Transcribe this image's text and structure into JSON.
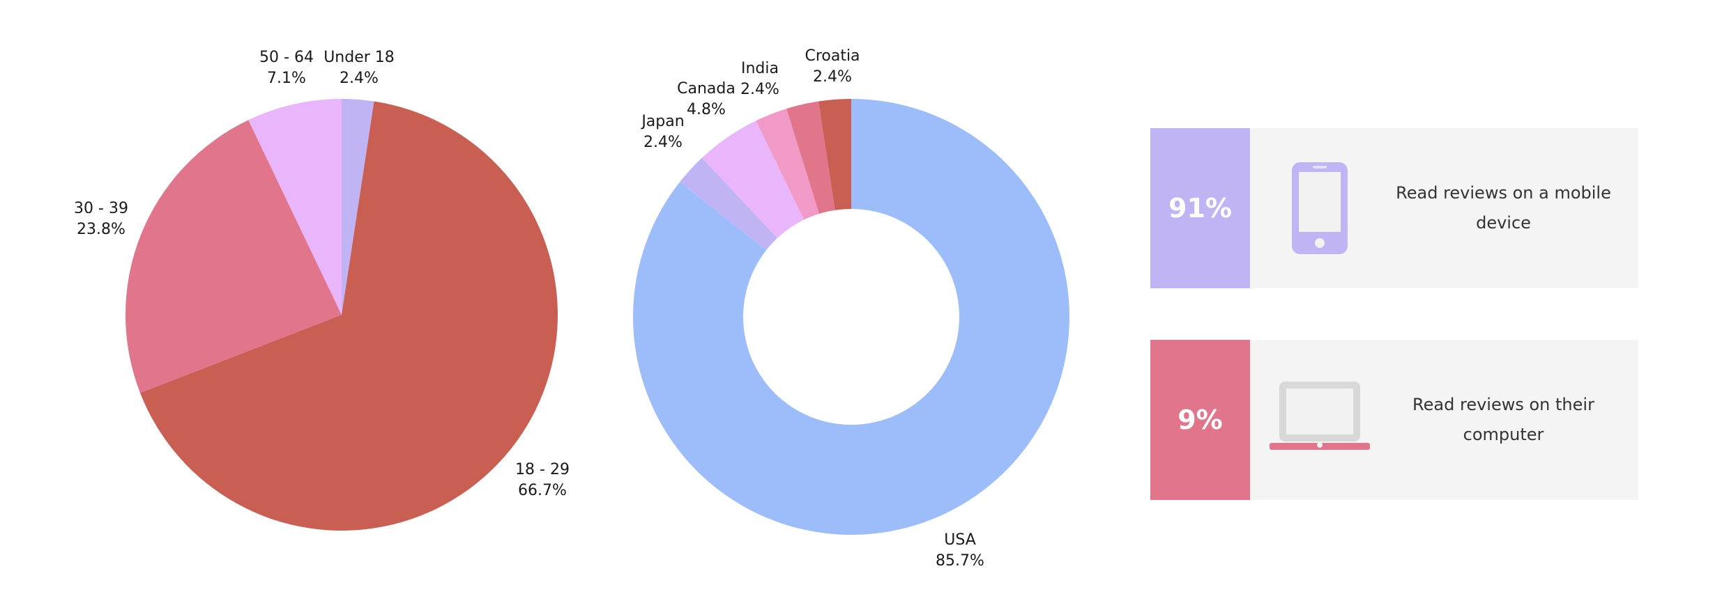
{
  "colors": {
    "lavender": "#c1b4f5",
    "rust": "#c95e52",
    "rose": "#e0758b",
    "pink_light": "#eab6fb",
    "pink_mid": "#f29ac7",
    "blue": "#9dbdfa",
    "card_bg": "#f4f4f4",
    "icon_gray": "#d8d8d8"
  },
  "chart_data": [
    {
      "type": "pie",
      "title": "",
      "slices": [
        {
          "label": "Under 18",
          "value": 2.4,
          "display": "2.4%",
          "color": "#c1b4f5"
        },
        {
          "label": "18 - 29",
          "value": 66.7,
          "display": "66.7%",
          "color": "#c95e52"
        },
        {
          "label": "30 - 39",
          "value": 23.8,
          "display": "23.8%",
          "color": "#e0758b"
        },
        {
          "label": "50 - 64",
          "value": 7.1,
          "display": "7.1%",
          "color": "#eab6fb"
        }
      ]
    },
    {
      "type": "pie",
      "subtype": "donut",
      "title": "",
      "slices": [
        {
          "label": "USA",
          "value": 85.7,
          "display": "85.7%",
          "color": "#9dbdfa"
        },
        {
          "label": "Japan",
          "value": 2.4,
          "display": "2.4%",
          "color": "#c1b4f5"
        },
        {
          "label": "Canada",
          "value": 4.8,
          "display": "4.8%",
          "color": "#eab6fb"
        },
        {
          "label": "India",
          "value": 2.4,
          "display": "2.4%",
          "color": "#f29ac7"
        },
        {
          "label": "",
          "value": 2.4,
          "display": "",
          "color": "#e0758b"
        },
        {
          "label": "Croatia",
          "value": 2.4,
          "display": "2.4%",
          "color": "#c95e52"
        }
      ]
    }
  ],
  "stats": [
    {
      "value": "91%",
      "text": "Read reviews on a mobile device",
      "icon": "smartphone-icon",
      "color": "#c1b4f5"
    },
    {
      "value": "9%",
      "text": "Read reviews on their computer",
      "icon": "laptop-icon",
      "color": "#e0758b"
    }
  ]
}
